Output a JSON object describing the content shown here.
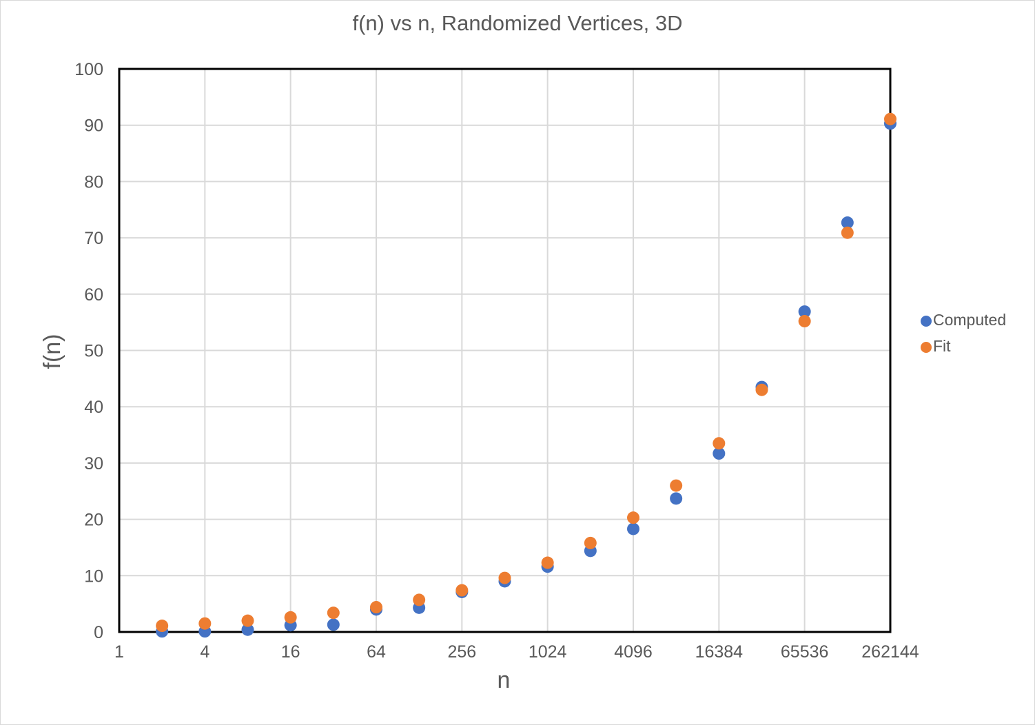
{
  "chart_data": {
    "type": "scatter",
    "title": "f(n) vs n, Randomized Vertices, 3D",
    "xlabel": "n",
    "ylabel": "f(n)",
    "x_scale": "log2",
    "xlim": [
      1,
      262144
    ],
    "ylim": [
      0,
      100
    ],
    "x_ticks": [
      1,
      4,
      16,
      64,
      256,
      1024,
      4096,
      16384,
      65536,
      262144
    ],
    "x_tick_labels": [
      "1",
      "4",
      "16",
      "64",
      "256",
      "1024",
      "4096",
      "16384",
      "65536",
      "262144"
    ],
    "y_ticks": [
      0,
      10,
      20,
      30,
      40,
      50,
      60,
      70,
      80,
      90,
      100
    ],
    "y_tick_labels": [
      "0",
      "10",
      "20",
      "30",
      "40",
      "50",
      "60",
      "70",
      "80",
      "90",
      "100"
    ],
    "grid": true,
    "legend_position": "right",
    "series": [
      {
        "name": "Computed",
        "color": "#4472C4",
        "x": [
          2,
          4,
          8,
          16,
          32,
          64,
          128,
          256,
          512,
          1024,
          2048,
          4096,
          8192,
          16384,
          32768,
          65536,
          131072,
          262144
        ],
        "y": [
          0.1,
          0.1,
          0.4,
          1.2,
          1.3,
          4.0,
          4.3,
          7.1,
          9.0,
          11.6,
          14.4,
          18.3,
          23.7,
          31.7,
          43.5,
          56.9,
          72.7,
          90.3
        ]
      },
      {
        "name": "Fit",
        "color": "#ED7D31",
        "x": [
          2,
          4,
          8,
          16,
          32,
          64,
          128,
          256,
          512,
          1024,
          2048,
          4096,
          8192,
          16384,
          32768,
          65536,
          131072,
          262144
        ],
        "y": [
          1.1,
          1.5,
          2.0,
          2.6,
          3.4,
          4.4,
          5.7,
          7.4,
          9.6,
          12.3,
          15.8,
          20.3,
          26.0,
          33.5,
          43.0,
          55.2,
          70.9,
          91.1
        ]
      }
    ]
  }
}
